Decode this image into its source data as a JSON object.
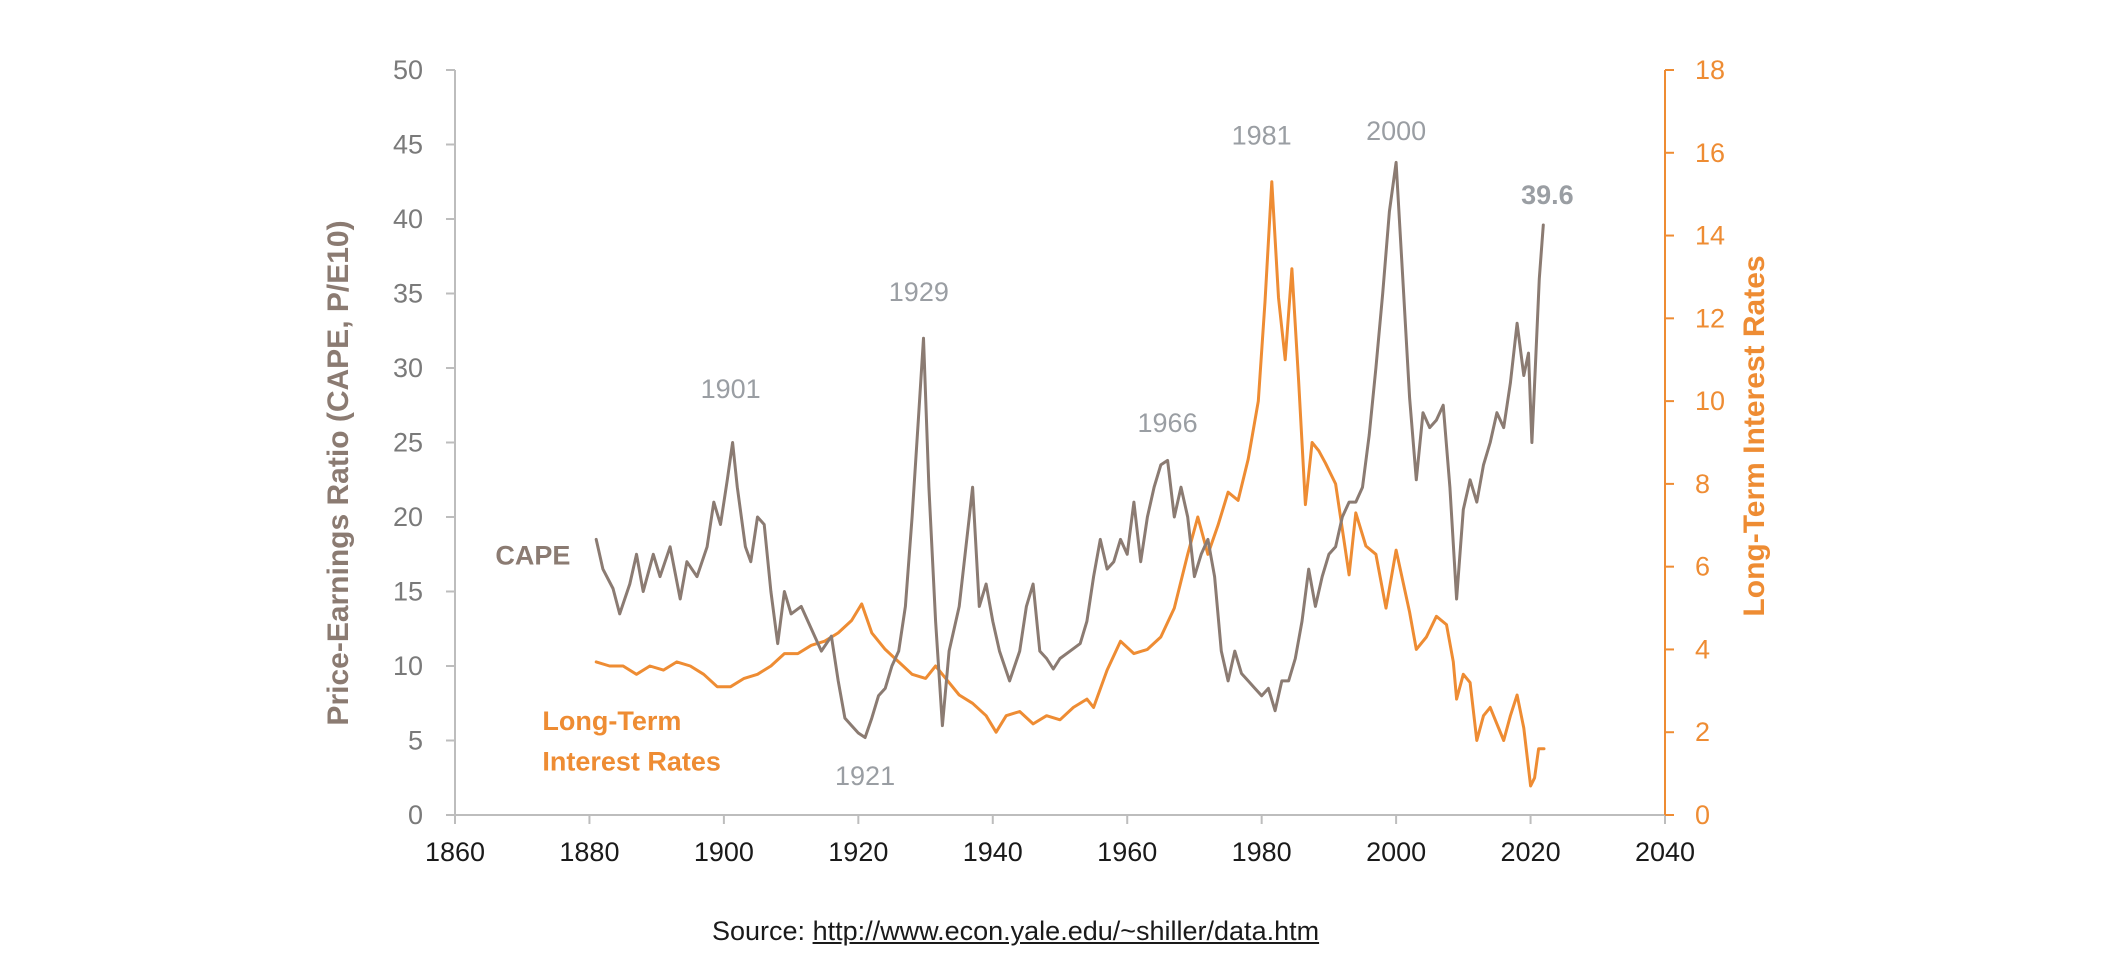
{
  "chart_data": {
    "type": "line",
    "xlim": [
      1860,
      2040
    ],
    "x_ticks": [
      "1860",
      "1880",
      "1900",
      "1920",
      "1940",
      "1960",
      "1980",
      "2000",
      "2020",
      "2040"
    ],
    "y_left": {
      "label": "Price-Earnings Ratio (CAPE, P/E10)",
      "lim": [
        0,
        50
      ],
      "ticks": [
        "0",
        "5",
        "10",
        "15",
        "20",
        "25",
        "30",
        "35",
        "40",
        "45",
        "50"
      ],
      "color": "#8b7b72"
    },
    "y_right": {
      "label": "Long-Term Interest Rates",
      "lim": [
        0,
        18
      ],
      "ticks": [
        "0",
        "2",
        "4",
        "6",
        "8",
        "10",
        "12",
        "14",
        "16",
        "18"
      ],
      "color": "#ee8c33"
    },
    "series": [
      {
        "name": "CAPE",
        "axis": "left",
        "color": "#8b7b72",
        "points": [
          [
            1881.0,
            18.5
          ],
          [
            1882.0,
            16.5
          ],
          [
            1883.5,
            15.2
          ],
          [
            1884.5,
            13.5
          ],
          [
            1886.0,
            15.5
          ],
          [
            1887.0,
            17.5
          ],
          [
            1888.0,
            15.0
          ],
          [
            1889.5,
            17.5
          ],
          [
            1890.5,
            16.0
          ],
          [
            1892.0,
            18.0
          ],
          [
            1893.5,
            14.5
          ],
          [
            1894.5,
            17.0
          ],
          [
            1896.0,
            16.0
          ],
          [
            1897.5,
            18.0
          ],
          [
            1898.5,
            21.0
          ],
          [
            1899.5,
            19.5
          ],
          [
            1900.5,
            22.5
          ],
          [
            1901.3,
            25.0
          ],
          [
            1902.0,
            22.0
          ],
          [
            1903.2,
            18.0
          ],
          [
            1904.0,
            17.0
          ],
          [
            1905.0,
            20.0
          ],
          [
            1906.0,
            19.5
          ],
          [
            1907.0,
            15.0
          ],
          [
            1908.0,
            11.5
          ],
          [
            1909.0,
            15.0
          ],
          [
            1910.0,
            13.5
          ],
          [
            1911.5,
            14.0
          ],
          [
            1913.0,
            12.5
          ],
          [
            1914.5,
            11.0
          ],
          [
            1916.0,
            12.0
          ],
          [
            1917.0,
            9.0
          ],
          [
            1918.0,
            6.5
          ],
          [
            1919.0,
            6.0
          ],
          [
            1920.0,
            5.5
          ],
          [
            1921.0,
            5.2
          ],
          [
            1922.0,
            6.5
          ],
          [
            1923.0,
            8.0
          ],
          [
            1924.0,
            8.5
          ],
          [
            1925.0,
            10.0
          ],
          [
            1926.0,
            11.0
          ],
          [
            1927.0,
            14.0
          ],
          [
            1928.0,
            20.0
          ],
          [
            1929.0,
            27.0
          ],
          [
            1929.7,
            32.0
          ],
          [
            1930.5,
            22.0
          ],
          [
            1931.5,
            13.0
          ],
          [
            1932.5,
            6.0
          ],
          [
            1933.5,
            11.0
          ],
          [
            1935.0,
            14.0
          ],
          [
            1936.5,
            20.0
          ],
          [
            1937.0,
            22.0
          ],
          [
            1938.0,
            14.0
          ],
          [
            1939.0,
            15.5
          ],
          [
            1940.0,
            13.0
          ],
          [
            1941.0,
            11.0
          ],
          [
            1942.5,
            9.0
          ],
          [
            1944.0,
            11.0
          ],
          [
            1945.0,
            14.0
          ],
          [
            1946.0,
            15.5
          ],
          [
            1947.0,
            11.0
          ],
          [
            1948.0,
            10.5
          ],
          [
            1949.0,
            9.8
          ],
          [
            1950.0,
            10.5
          ],
          [
            1951.5,
            11.0
          ],
          [
            1953.0,
            11.5
          ],
          [
            1954.0,
            13.0
          ],
          [
            1955.0,
            16.0
          ],
          [
            1956.0,
            18.5
          ],
          [
            1957.0,
            16.5
          ],
          [
            1958.0,
            17.0
          ],
          [
            1959.0,
            18.5
          ],
          [
            1960.0,
            17.5
          ],
          [
            1961.0,
            21.0
          ],
          [
            1962.0,
            17.0
          ],
          [
            1963.0,
            20.0
          ],
          [
            1964.0,
            22.0
          ],
          [
            1965.0,
            23.5
          ],
          [
            1966.0,
            23.8
          ],
          [
            1967.0,
            20.0
          ],
          [
            1968.0,
            22.0
          ],
          [
            1969.0,
            20.0
          ],
          [
            1970.0,
            16.0
          ],
          [
            1971.0,
            17.5
          ],
          [
            1972.0,
            18.5
          ],
          [
            1973.0,
            16.0
          ],
          [
            1974.0,
            11.0
          ],
          [
            1975.0,
            9.0
          ],
          [
            1976.0,
            11.0
          ],
          [
            1977.0,
            9.5
          ],
          [
            1978.0,
            9.0
          ],
          [
            1979.0,
            8.5
          ],
          [
            1980.0,
            8.0
          ],
          [
            1981.0,
            8.5
          ],
          [
            1982.0,
            7.0
          ],
          [
            1983.0,
            9.0
          ],
          [
            1984.0,
            9.0
          ],
          [
            1985.0,
            10.5
          ],
          [
            1986.0,
            13.0
          ],
          [
            1987.0,
            16.5
          ],
          [
            1988.0,
            14.0
          ],
          [
            1989.0,
            16.0
          ],
          [
            1990.0,
            17.5
          ],
          [
            1991.0,
            18.0
          ],
          [
            1992.0,
            20.0
          ],
          [
            1993.0,
            21.0
          ],
          [
            1994.0,
            21.0
          ],
          [
            1995.0,
            22.0
          ],
          [
            1996.0,
            25.5
          ],
          [
            1997.0,
            30.0
          ],
          [
            1998.0,
            35.0
          ],
          [
            1999.0,
            40.5
          ],
          [
            2000.0,
            43.8
          ],
          [
            2001.0,
            36.0
          ],
          [
            2002.0,
            28.0
          ],
          [
            2003.0,
            22.5
          ],
          [
            2004.0,
            27.0
          ],
          [
            2005.0,
            26.0
          ],
          [
            2006.0,
            26.5
          ],
          [
            2007.0,
            27.5
          ],
          [
            2008.0,
            22.0
          ],
          [
            2009.0,
            14.5
          ],
          [
            2010.0,
            20.5
          ],
          [
            2011.0,
            22.5
          ],
          [
            2012.0,
            21.0
          ],
          [
            2013.0,
            23.5
          ],
          [
            2014.0,
            25.0
          ],
          [
            2015.0,
            27.0
          ],
          [
            2016.0,
            26.0
          ],
          [
            2017.0,
            29.0
          ],
          [
            2018.0,
            33.0
          ],
          [
            2019.0,
            29.5
          ],
          [
            2019.7,
            31.0
          ],
          [
            2020.2,
            25.0
          ],
          [
            2020.7,
            30.0
          ],
          [
            2021.3,
            36.0
          ],
          [
            2021.9,
            39.6
          ]
        ]
      },
      {
        "name": "Long-Term Interest Rates",
        "axis": "right",
        "color": "#ee8c33",
        "points": [
          [
            1881.0,
            3.7
          ],
          [
            1883.0,
            3.6
          ],
          [
            1885.0,
            3.6
          ],
          [
            1887.0,
            3.4
          ],
          [
            1889.0,
            3.6
          ],
          [
            1891.0,
            3.5
          ],
          [
            1893.0,
            3.7
          ],
          [
            1895.0,
            3.6
          ],
          [
            1897.0,
            3.4
          ],
          [
            1899.0,
            3.1
          ],
          [
            1901.0,
            3.1
          ],
          [
            1903.0,
            3.3
          ],
          [
            1905.0,
            3.4
          ],
          [
            1907.0,
            3.6
          ],
          [
            1909.0,
            3.9
          ],
          [
            1911.0,
            3.9
          ],
          [
            1913.0,
            4.1
          ],
          [
            1915.0,
            4.2
          ],
          [
            1917.0,
            4.4
          ],
          [
            1919.0,
            4.7
          ],
          [
            1920.5,
            5.1
          ],
          [
            1922.0,
            4.4
          ],
          [
            1924.0,
            4.0
          ],
          [
            1926.0,
            3.7
          ],
          [
            1928.0,
            3.4
          ],
          [
            1930.0,
            3.3
          ],
          [
            1931.5,
            3.6
          ],
          [
            1933.0,
            3.3
          ],
          [
            1935.0,
            2.9
          ],
          [
            1937.0,
            2.7
          ],
          [
            1939.0,
            2.4
          ],
          [
            1940.5,
            2.0
          ],
          [
            1942.0,
            2.4
          ],
          [
            1944.0,
            2.5
          ],
          [
            1946.0,
            2.2
          ],
          [
            1948.0,
            2.4
          ],
          [
            1950.0,
            2.3
          ],
          [
            1952.0,
            2.6
          ],
          [
            1954.0,
            2.8
          ],
          [
            1955.0,
            2.6
          ],
          [
            1957.0,
            3.5
          ],
          [
            1959.0,
            4.2
          ],
          [
            1961.0,
            3.9
          ],
          [
            1963.0,
            4.0
          ],
          [
            1965.0,
            4.3
          ],
          [
            1967.0,
            5.0
          ],
          [
            1969.0,
            6.3
          ],
          [
            1970.5,
            7.2
          ],
          [
            1972.0,
            6.3
          ],
          [
            1973.5,
            7.0
          ],
          [
            1975.0,
            7.8
          ],
          [
            1976.5,
            7.6
          ],
          [
            1978.0,
            8.6
          ],
          [
            1979.5,
            10.0
          ],
          [
            1980.5,
            12.4
          ],
          [
            1981.5,
            15.3
          ],
          [
            1982.5,
            12.5
          ],
          [
            1983.5,
            11.0
          ],
          [
            1984.5,
            13.2
          ],
          [
            1985.5,
            10.5
          ],
          [
            1986.5,
            7.5
          ],
          [
            1987.5,
            9.0
          ],
          [
            1988.5,
            8.8
          ],
          [
            1989.5,
            8.5
          ],
          [
            1991.0,
            8.0
          ],
          [
            1993.0,
            5.8
          ],
          [
            1994.0,
            7.3
          ],
          [
            1995.5,
            6.5
          ],
          [
            1997.0,
            6.3
          ],
          [
            1998.5,
            5.0
          ],
          [
            2000.0,
            6.4
          ],
          [
            2002.0,
            4.9
          ],
          [
            2003.0,
            4.0
          ],
          [
            2004.5,
            4.3
          ],
          [
            2006.0,
            4.8
          ],
          [
            2007.5,
            4.6
          ],
          [
            2008.5,
            3.7
          ],
          [
            2009.0,
            2.8
          ],
          [
            2010.0,
            3.4
          ],
          [
            2011.0,
            3.2
          ],
          [
            2012.0,
            1.8
          ],
          [
            2013.0,
            2.4
          ],
          [
            2014.0,
            2.6
          ],
          [
            2015.0,
            2.2
          ],
          [
            2016.0,
            1.8
          ],
          [
            2017.0,
            2.4
          ],
          [
            2018.0,
            2.9
          ],
          [
            2019.0,
            2.1
          ],
          [
            2020.0,
            0.7
          ],
          [
            2020.6,
            0.9
          ],
          [
            2021.2,
            1.6
          ],
          [
            2022.0,
            1.6
          ]
        ]
      }
    ],
    "annotations": [
      {
        "text": "1901",
        "x": 1901,
        "y": 28.0,
        "color": "#9a9ea3"
      },
      {
        "text": "1929",
        "x": 1929,
        "y": 34.5,
        "color": "#9a9ea3"
      },
      {
        "text": "1921",
        "x": 1921,
        "y": 2.0,
        "color": "#9a9ea3"
      },
      {
        "text": "1966",
        "x": 1966,
        "y": 25.7,
        "color": "#9a9ea3"
      },
      {
        "text": "1981",
        "x": 1980,
        "y": 45.0,
        "color": "#9a9ea3"
      },
      {
        "text": "2000",
        "x": 2000,
        "y": 45.3,
        "color": "#9a9ea3"
      },
      {
        "text": "39.6",
        "x": 2022.5,
        "y": 41.0,
        "color": "#a4342a",
        "bold": true
      }
    ],
    "series_labels": [
      {
        "lines": [
          "CAPE"
        ],
        "x": 1866,
        "y": 16.8,
        "color": "#8b7b72"
      },
      {
        "lines": [
          "Long-Term",
          "Interest Rates"
        ],
        "x": 1873,
        "y": 5.7,
        "color": "#ee8c33",
        "line_gap": 2.7
      }
    ],
    "source": {
      "label": "Source: ",
      "link": "http://www.econ.yale.edu/~shiller/data.htm"
    }
  }
}
